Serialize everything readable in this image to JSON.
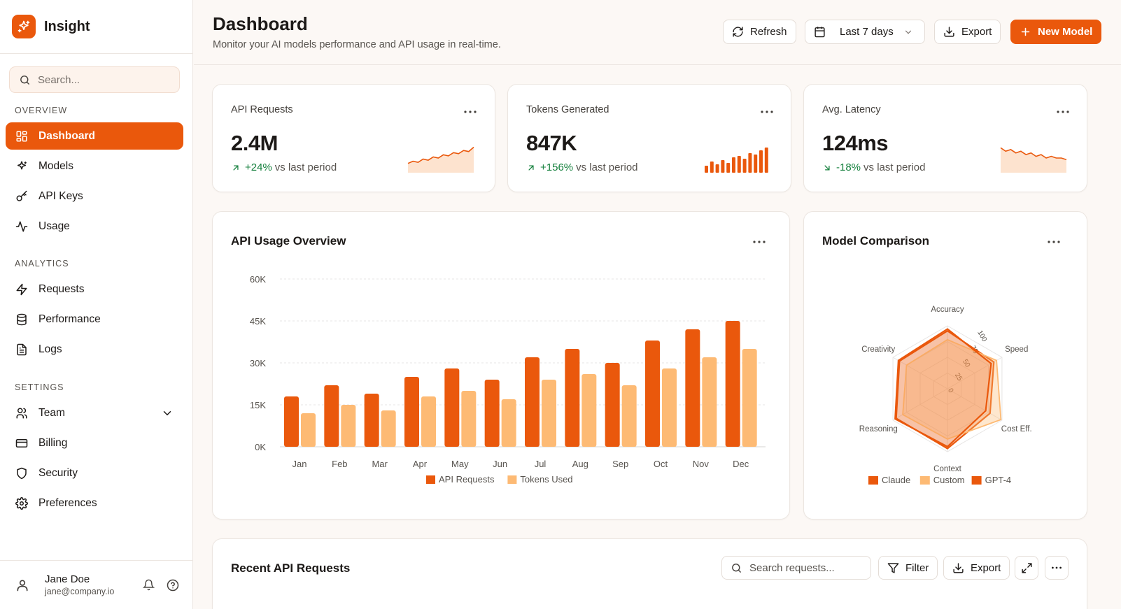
{
  "app": {
    "name": "Insight"
  },
  "sidebar": {
    "search_placeholder": "Search...",
    "sections": {
      "overview": "OVERVIEW",
      "analytics": "ANALYTICS",
      "settings": "SETTINGS"
    },
    "items": [
      {
        "label": "Dashboard",
        "icon": "dashboard-icon",
        "active": true
      },
      {
        "label": "Models",
        "icon": "sparkles-icon"
      },
      {
        "label": "API Keys",
        "icon": "key-icon"
      },
      {
        "label": "Usage",
        "icon": "activity-icon"
      },
      {
        "label": "Requests",
        "icon": "zap-icon"
      },
      {
        "label": "Performance",
        "icon": "database-icon"
      },
      {
        "label": "Logs",
        "icon": "file-text-icon"
      },
      {
        "label": "Team",
        "icon": "users-icon"
      },
      {
        "label": "Billing",
        "icon": "credit-card-icon"
      },
      {
        "label": "Security",
        "icon": "shield-icon"
      },
      {
        "label": "Preferences",
        "icon": "settings-icon"
      }
    ],
    "user": {
      "name": "Jane Doe",
      "email": "jane@company.io"
    }
  },
  "header": {
    "title": "Dashboard",
    "subtitle": "Monitor your AI models performance and API usage in real-time.",
    "refresh_label": "Refresh",
    "range_label": "Last 7 days",
    "export_label": "Export",
    "new_model_label": "New Model"
  },
  "kpis": [
    {
      "title": "API Requests",
      "value": "2.4M",
      "delta": "+24%",
      "delta_suffix": "vs last period",
      "trend": "up"
    },
    {
      "title": "Tokens Generated",
      "value": "847K",
      "delta": "+156%",
      "delta_suffix": "vs last period",
      "trend": "up"
    },
    {
      "title": "Avg. Latency",
      "value": "124ms",
      "delta": "-18%",
      "delta_suffix": "vs last period",
      "trend": "down"
    }
  ],
  "colors": {
    "accent": "#ea580c",
    "accent_light": "#fdba74",
    "positive": "#15803d"
  },
  "chart_data": [
    {
      "type": "bar",
      "title": "API Usage Overview",
      "categories": [
        "Jan",
        "Feb",
        "Mar",
        "Apr",
        "May",
        "Jun",
        "Jul",
        "Aug",
        "Sep",
        "Oct",
        "Nov",
        "Dec"
      ],
      "series": [
        {
          "name": "API Requests",
          "color": "#ea580c",
          "values": [
            18000,
            22000,
            19000,
            25000,
            28000,
            24000,
            32000,
            35000,
            30000,
            38000,
            42000,
            45000
          ]
        },
        {
          "name": "Tokens Used",
          "color": "#fdba74",
          "values": [
            12000,
            15000,
            13000,
            18000,
            20000,
            17000,
            24000,
            26000,
            22000,
            28000,
            32000,
            35000
          ]
        }
      ],
      "yticks": [
        "0K",
        "15K",
        "30K",
        "45K",
        "60K"
      ],
      "ylim": [
        0,
        60000
      ],
      "grid": true,
      "legend": "bottom"
    },
    {
      "type": "radar",
      "title": "Model Comparison",
      "axes": [
        "Accuracy",
        "Speed",
        "Cost Eff.",
        "Context",
        "Reasoning",
        "Creativity"
      ],
      "radial_ticks": [
        "0",
        "25",
        "50",
        "75",
        "100"
      ],
      "rlim": [
        0,
        100
      ],
      "series": [
        {
          "name": "Claude",
          "color": "#ea580c",
          "values": [
            92,
            85,
            78,
            95,
            94,
            88
          ]
        },
        {
          "name": "Custom",
          "color": "#fdba74",
          "values": [
            78,
            90,
            98,
            80,
            82,
            75
          ]
        },
        {
          "name": "GPT-4",
          "color": "#ea580c",
          "values": [
            95,
            80,
            70,
            92,
            96,
            90
          ]
        }
      ],
      "legend": "bottom"
    },
    {
      "type": "area",
      "title": "",
      "values": [
        10,
        12,
        11,
        14,
        13,
        16,
        15,
        18,
        17,
        20,
        19,
        22,
        21,
        25
      ]
    },
    {
      "type": "bar",
      "title": "",
      "values": [
        5,
        8,
        6,
        9,
        7,
        11,
        12,
        10,
        14,
        13,
        16,
        18
      ]
    },
    {
      "type": "area",
      "title": "",
      "values": [
        22,
        20,
        21,
        19,
        20,
        18,
        19,
        17,
        18,
        16,
        17,
        16,
        16,
        15
      ]
    }
  ],
  "recent": {
    "title": "Recent API Requests",
    "search_placeholder": "Search requests...",
    "filter_label": "Filter",
    "export_label": "Export"
  }
}
